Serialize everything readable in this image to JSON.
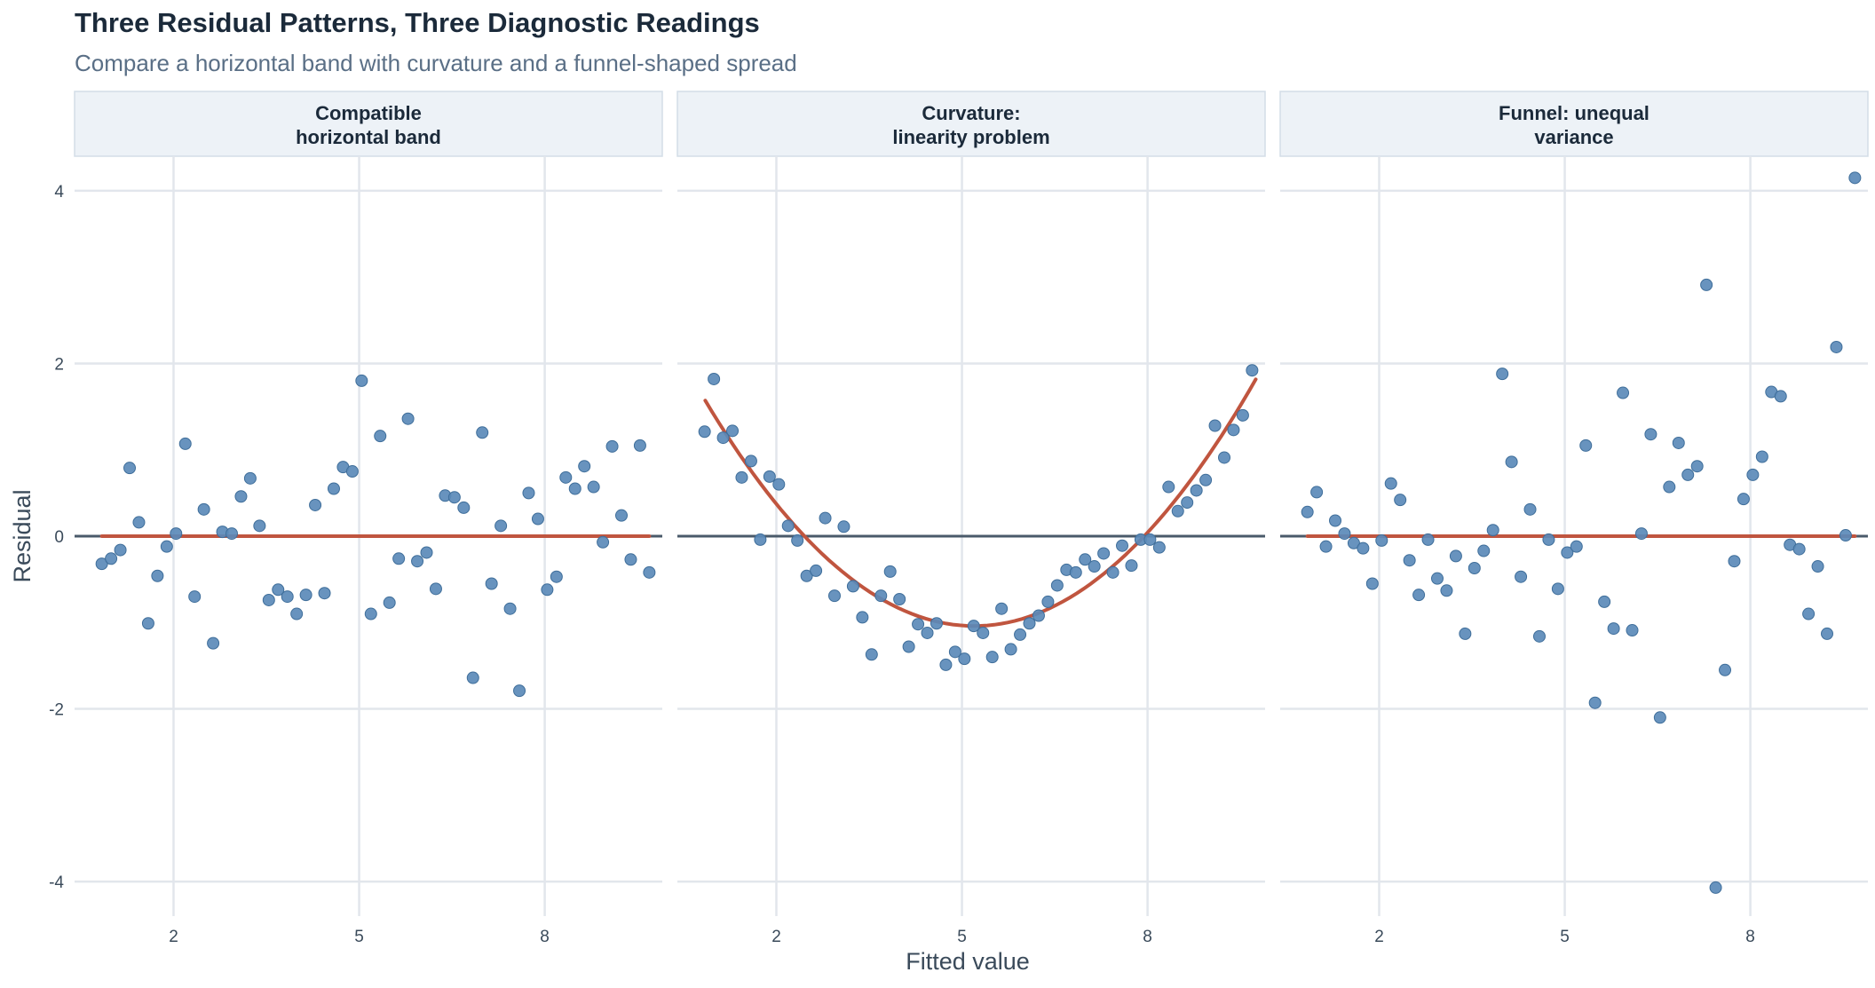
{
  "title": "Three Residual Patterns, Three Diagnostic Readings",
  "subtitle": "Compare a horizontal band with curvature and a funnel-shaped spread",
  "colors": {
    "point": "#5b8ab8",
    "fit_line": "#c0553f",
    "zero_line": "#4a5a6a",
    "grid": "#e2e6ec",
    "strip_bg": "#edf2f7",
    "strip_border": "#d3dde7"
  },
  "chart_data": {
    "type": "scatter",
    "xlabel": "Fitted value",
    "ylabel": "Residual",
    "xlim": [
      0.4,
      9.9
    ],
    "ylim": [
      -4.4,
      4.4
    ],
    "x_ticks": [
      2,
      5,
      8
    ],
    "y_ticks": [
      -4,
      -2,
      0,
      2,
      4
    ],
    "y_tick_labels": [
      "-4",
      "-2",
      "0",
      "2",
      "4"
    ],
    "grid": true,
    "panels": [
      {
        "strip": [
          "Compatible",
          "horizontal band"
        ],
        "line": {
          "type": "hline",
          "y": 0
        },
        "points": [
          [
            0.84,
            -0.32
          ],
          [
            0.99,
            -0.26
          ],
          [
            1.14,
            -0.16
          ],
          [
            1.29,
            0.79
          ],
          [
            1.44,
            0.16
          ],
          [
            1.59,
            -1.01
          ],
          [
            1.74,
            -0.46
          ],
          [
            1.89,
            -0.12
          ],
          [
            2.04,
            0.03
          ],
          [
            2.19,
            1.07
          ],
          [
            2.34,
            -0.7
          ],
          [
            2.49,
            0.31
          ],
          [
            2.64,
            -1.24
          ],
          [
            2.79,
            0.05
          ],
          [
            2.94,
            0.03
          ],
          [
            3.09,
            0.46
          ],
          [
            3.24,
            0.67
          ],
          [
            3.39,
            0.12
          ],
          [
            3.54,
            -0.74
          ],
          [
            3.69,
            -0.62
          ],
          [
            3.84,
            -0.7
          ],
          [
            3.99,
            -0.9
          ],
          [
            4.14,
            -0.68
          ],
          [
            4.29,
            0.36
          ],
          [
            4.44,
            -0.66
          ],
          [
            4.59,
            0.55
          ],
          [
            4.74,
            0.8
          ],
          [
            4.89,
            0.75
          ],
          [
            5.04,
            1.8
          ],
          [
            5.19,
            -0.9
          ],
          [
            5.34,
            1.16
          ],
          [
            5.49,
            -0.77
          ],
          [
            5.64,
            -0.26
          ],
          [
            5.79,
            1.36
          ],
          [
            5.94,
            -0.29
          ],
          [
            6.09,
            -0.19
          ],
          [
            6.24,
            -0.61
          ],
          [
            6.39,
            0.47
          ],
          [
            6.54,
            0.45
          ],
          [
            6.69,
            0.33
          ],
          [
            6.84,
            -1.64
          ],
          [
            6.99,
            1.2
          ],
          [
            7.14,
            -0.55
          ],
          [
            7.29,
            0.12
          ],
          [
            7.44,
            -0.84
          ],
          [
            7.59,
            -1.79
          ],
          [
            7.74,
            0.5
          ],
          [
            7.89,
            0.2
          ],
          [
            8.04,
            -0.62
          ],
          [
            8.19,
            -0.47
          ],
          [
            8.34,
            0.68
          ],
          [
            8.49,
            0.55
          ],
          [
            8.64,
            0.81
          ],
          [
            8.79,
            0.57
          ],
          [
            8.94,
            -0.07
          ],
          [
            9.09,
            1.04
          ],
          [
            9.24,
            0.24
          ],
          [
            9.39,
            -0.27
          ],
          [
            9.54,
            1.05
          ],
          [
            9.69,
            -0.42
          ]
        ]
      },
      {
        "strip": [
          "Curvature:",
          "linearity problem"
        ],
        "line": {
          "type": "quadratic",
          "vertex_x": 5.2,
          "vertex_y": -1.04,
          "a": 0.138,
          "from": 0.85,
          "to": 9.75
        },
        "points": [
          [
            0.84,
            1.21
          ],
          [
            0.99,
            1.82
          ],
          [
            1.14,
            1.14
          ],
          [
            1.29,
            1.22
          ],
          [
            1.44,
            0.68
          ],
          [
            1.59,
            0.87
          ],
          [
            1.74,
            -0.04
          ],
          [
            1.89,
            0.69
          ],
          [
            2.04,
            0.6
          ],
          [
            2.19,
            0.12
          ],
          [
            2.34,
            -0.05
          ],
          [
            2.49,
            -0.46
          ],
          [
            2.64,
            -0.4
          ],
          [
            2.79,
            0.21
          ],
          [
            2.94,
            -0.69
          ],
          [
            3.09,
            0.11
          ],
          [
            3.24,
            -0.58
          ],
          [
            3.39,
            -0.94
          ],
          [
            3.54,
            -1.37
          ],
          [
            3.69,
            -0.69
          ],
          [
            3.84,
            -0.41
          ],
          [
            3.99,
            -0.73
          ],
          [
            4.14,
            -1.28
          ],
          [
            4.29,
            -1.02
          ],
          [
            4.44,
            -1.12
          ],
          [
            4.59,
            -1.01
          ],
          [
            4.74,
            -1.49
          ],
          [
            4.89,
            -1.34
          ],
          [
            5.04,
            -1.42
          ],
          [
            5.19,
            -1.04
          ],
          [
            5.34,
            -1.12
          ],
          [
            5.49,
            -1.4
          ],
          [
            5.64,
            -0.84
          ],
          [
            5.79,
            -1.31
          ],
          [
            5.94,
            -1.14
          ],
          [
            6.09,
            -1.01
          ],
          [
            6.24,
            -0.92
          ],
          [
            6.39,
            -0.76
          ],
          [
            6.54,
            -0.57
          ],
          [
            6.69,
            -0.39
          ],
          [
            6.84,
            -0.42
          ],
          [
            6.99,
            -0.27
          ],
          [
            7.14,
            -0.35
          ],
          [
            7.29,
            -0.2
          ],
          [
            7.44,
            -0.42
          ],
          [
            7.59,
            -0.11
          ],
          [
            7.74,
            -0.34
          ],
          [
            7.89,
            -0.04
          ],
          [
            8.04,
            -0.04
          ],
          [
            8.19,
            -0.13
          ],
          [
            8.34,
            0.57
          ],
          [
            8.49,
            0.29
          ],
          [
            8.64,
            0.39
          ],
          [
            8.79,
            0.53
          ],
          [
            8.94,
            0.65
          ],
          [
            9.09,
            1.28
          ],
          [
            9.24,
            0.91
          ],
          [
            9.39,
            1.23
          ],
          [
            9.54,
            1.4
          ],
          [
            9.69,
            1.92
          ]
        ]
      },
      {
        "strip": [
          "Funnel: unequal",
          "variance"
        ],
        "line": {
          "type": "hline",
          "y": 0
        },
        "points": [
          [
            0.84,
            0.28
          ],
          [
            0.99,
            0.51
          ],
          [
            1.14,
            -0.12
          ],
          [
            1.29,
            0.18
          ],
          [
            1.44,
            0.03
          ],
          [
            1.59,
            -0.08
          ],
          [
            1.74,
            -0.14
          ],
          [
            1.89,
            -0.55
          ],
          [
            2.04,
            -0.05
          ],
          [
            2.19,
            0.61
          ],
          [
            2.34,
            0.42
          ],
          [
            2.49,
            -0.28
          ],
          [
            2.64,
            -0.68
          ],
          [
            2.79,
            -0.04
          ],
          [
            2.94,
            -0.49
          ],
          [
            3.09,
            -0.63
          ],
          [
            3.24,
            -0.23
          ],
          [
            3.39,
            -1.13
          ],
          [
            3.54,
            -0.37
          ],
          [
            3.69,
            -0.17
          ],
          [
            3.84,
            0.07
          ],
          [
            3.99,
            1.88
          ],
          [
            4.14,
            0.86
          ],
          [
            4.29,
            -0.47
          ],
          [
            4.44,
            0.31
          ],
          [
            4.59,
            -1.16
          ],
          [
            4.74,
            -0.04
          ],
          [
            4.89,
            -0.61
          ],
          [
            5.04,
            -0.19
          ],
          [
            5.19,
            -0.12
          ],
          [
            5.34,
            1.05
          ],
          [
            5.49,
            -1.93
          ],
          [
            5.64,
            -0.76
          ],
          [
            5.79,
            -1.07
          ],
          [
            5.94,
            1.66
          ],
          [
            6.09,
            -1.09
          ],
          [
            6.24,
            0.03
          ],
          [
            6.39,
            1.18
          ],
          [
            6.54,
            -2.1
          ],
          [
            6.69,
            0.57
          ],
          [
            6.84,
            1.08
          ],
          [
            6.99,
            0.71
          ],
          [
            7.14,
            0.81
          ],
          [
            7.29,
            2.91
          ],
          [
            7.44,
            -4.07
          ],
          [
            7.59,
            -1.55
          ],
          [
            7.74,
            -0.29
          ],
          [
            7.89,
            0.43
          ],
          [
            8.04,
            0.71
          ],
          [
            8.19,
            0.92
          ],
          [
            8.34,
            1.67
          ],
          [
            8.49,
            1.62
          ],
          [
            8.64,
            -0.1
          ],
          [
            8.79,
            -0.15
          ],
          [
            8.94,
            -0.9
          ],
          [
            9.09,
            -0.35
          ],
          [
            9.24,
            -1.13
          ],
          [
            9.39,
            2.19
          ],
          [
            9.54,
            0.01
          ],
          [
            9.69,
            4.15
          ]
        ]
      }
    ]
  }
}
